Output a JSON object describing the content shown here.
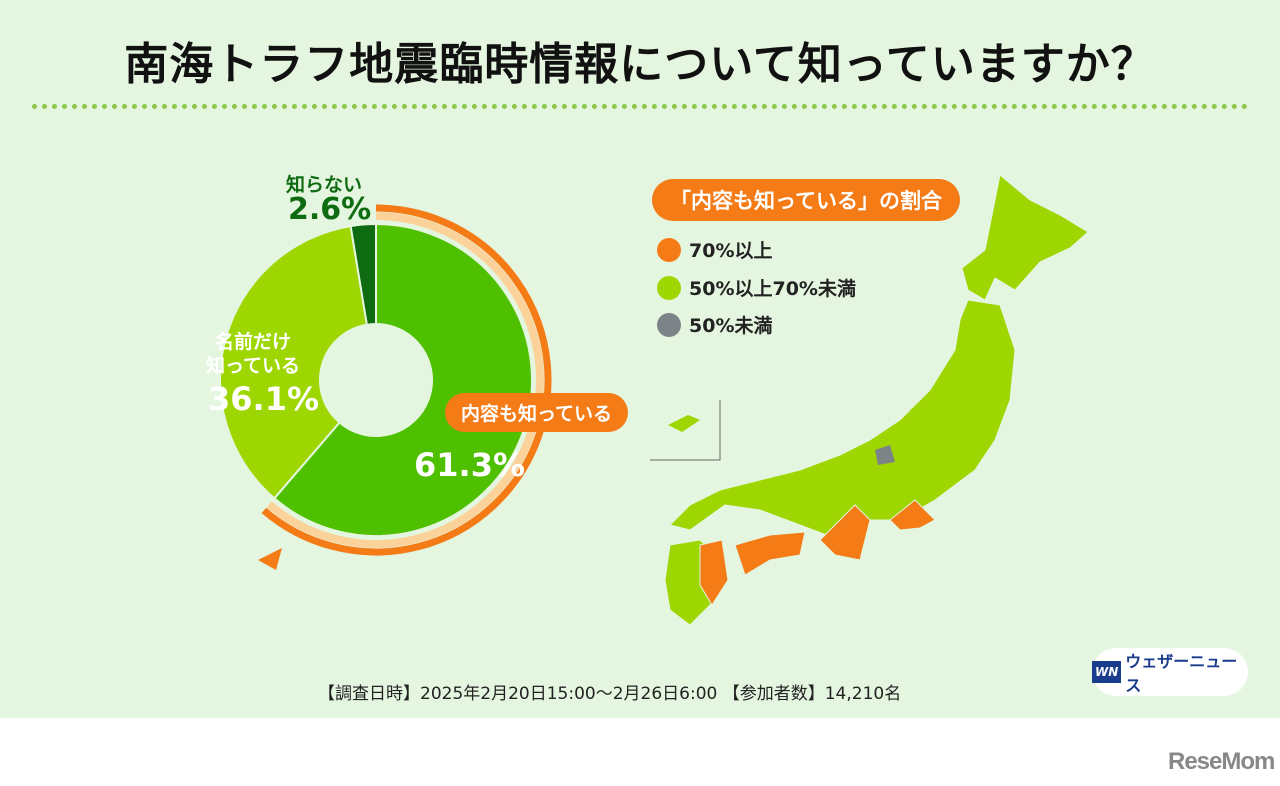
{
  "title": "南海トラフ地震臨時情報について知っていますか？",
  "chart_data": {
    "type": "pie",
    "title": "南海トラフ地震臨時情報について知っていますか？",
    "slices": [
      {
        "label": "内容も知っている",
        "value": 61.3,
        "display": "61.3%",
        "color": "#4fc000"
      },
      {
        "label": "名前だけ知っている",
        "label_lines": [
          "名前だけ",
          "知っている"
        ],
        "value": 36.1,
        "display": "36.1%",
        "color": "#9dd600"
      },
      {
        "label": "知らない",
        "value": 2.6,
        "display": "2.6%",
        "color": "#0f6b12"
      }
    ]
  },
  "map": {
    "legend_title": "「内容も知っている」の割合",
    "legend": [
      {
        "label": "70%以上",
        "color": "#f47b16"
      },
      {
        "label": "50%以上70%未満",
        "color": "#9dd600"
      },
      {
        "label": "50%未満",
        "color": "#7d8487"
      }
    ]
  },
  "footer": "【調査日時】2025年2月20日15:00〜2月26日6:00 【参加者数】14,210名",
  "logo": {
    "mark": "WN",
    "text": "ウェザーニュース"
  },
  "watermark": "ReseMom"
}
